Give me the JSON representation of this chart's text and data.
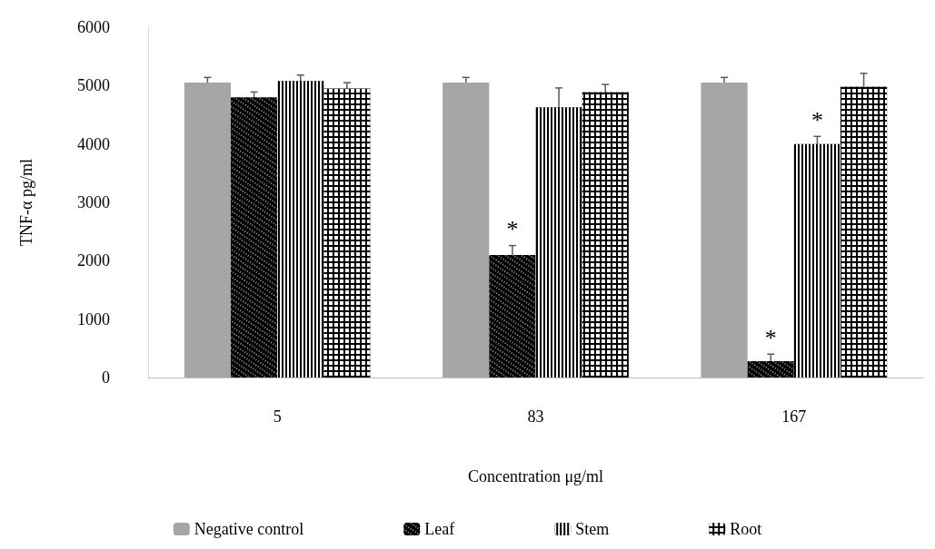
{
  "chart_data": {
    "type": "bar",
    "xlabel": "Concentration μg/ml",
    "ylabel": "TNF-α pg/ml",
    "categories": [
      "5",
      "83",
      "167"
    ],
    "series": [
      {
        "name": "Negative control",
        "color": "#a6a6a6",
        "values": [
          5050,
          5050,
          5050
        ],
        "errors": [
          90,
          90,
          90
        ]
      },
      {
        "name": "Leaf",
        "color": "#000000",
        "values": [
          4800,
          2100,
          280
        ],
        "errors": [
          90,
          160,
          120
        ]
      },
      {
        "name": "Stem",
        "color": "#000000",
        "values": [
          5080,
          4630,
          4000
        ],
        "errors": [
          100,
          330,
          130
        ]
      },
      {
        "name": "Root",
        "color": "#000000",
        "values": [
          4950,
          4890,
          4980
        ],
        "errors": [
          100,
          130,
          230
        ]
      }
    ],
    "annotations": [
      {
        "text": "*",
        "x": "83",
        "y": 2100
      },
      {
        "text": "*",
        "x": "167",
        "y": 280
      },
      {
        "text": "*",
        "x": "167",
        "y": 4000
      }
    ],
    "ylim": [
      0,
      6000
    ],
    "yticks": [
      0,
      1000,
      2000,
      3000,
      4000,
      5000,
      6000
    ],
    "grid": false,
    "legend": "bottom"
  }
}
